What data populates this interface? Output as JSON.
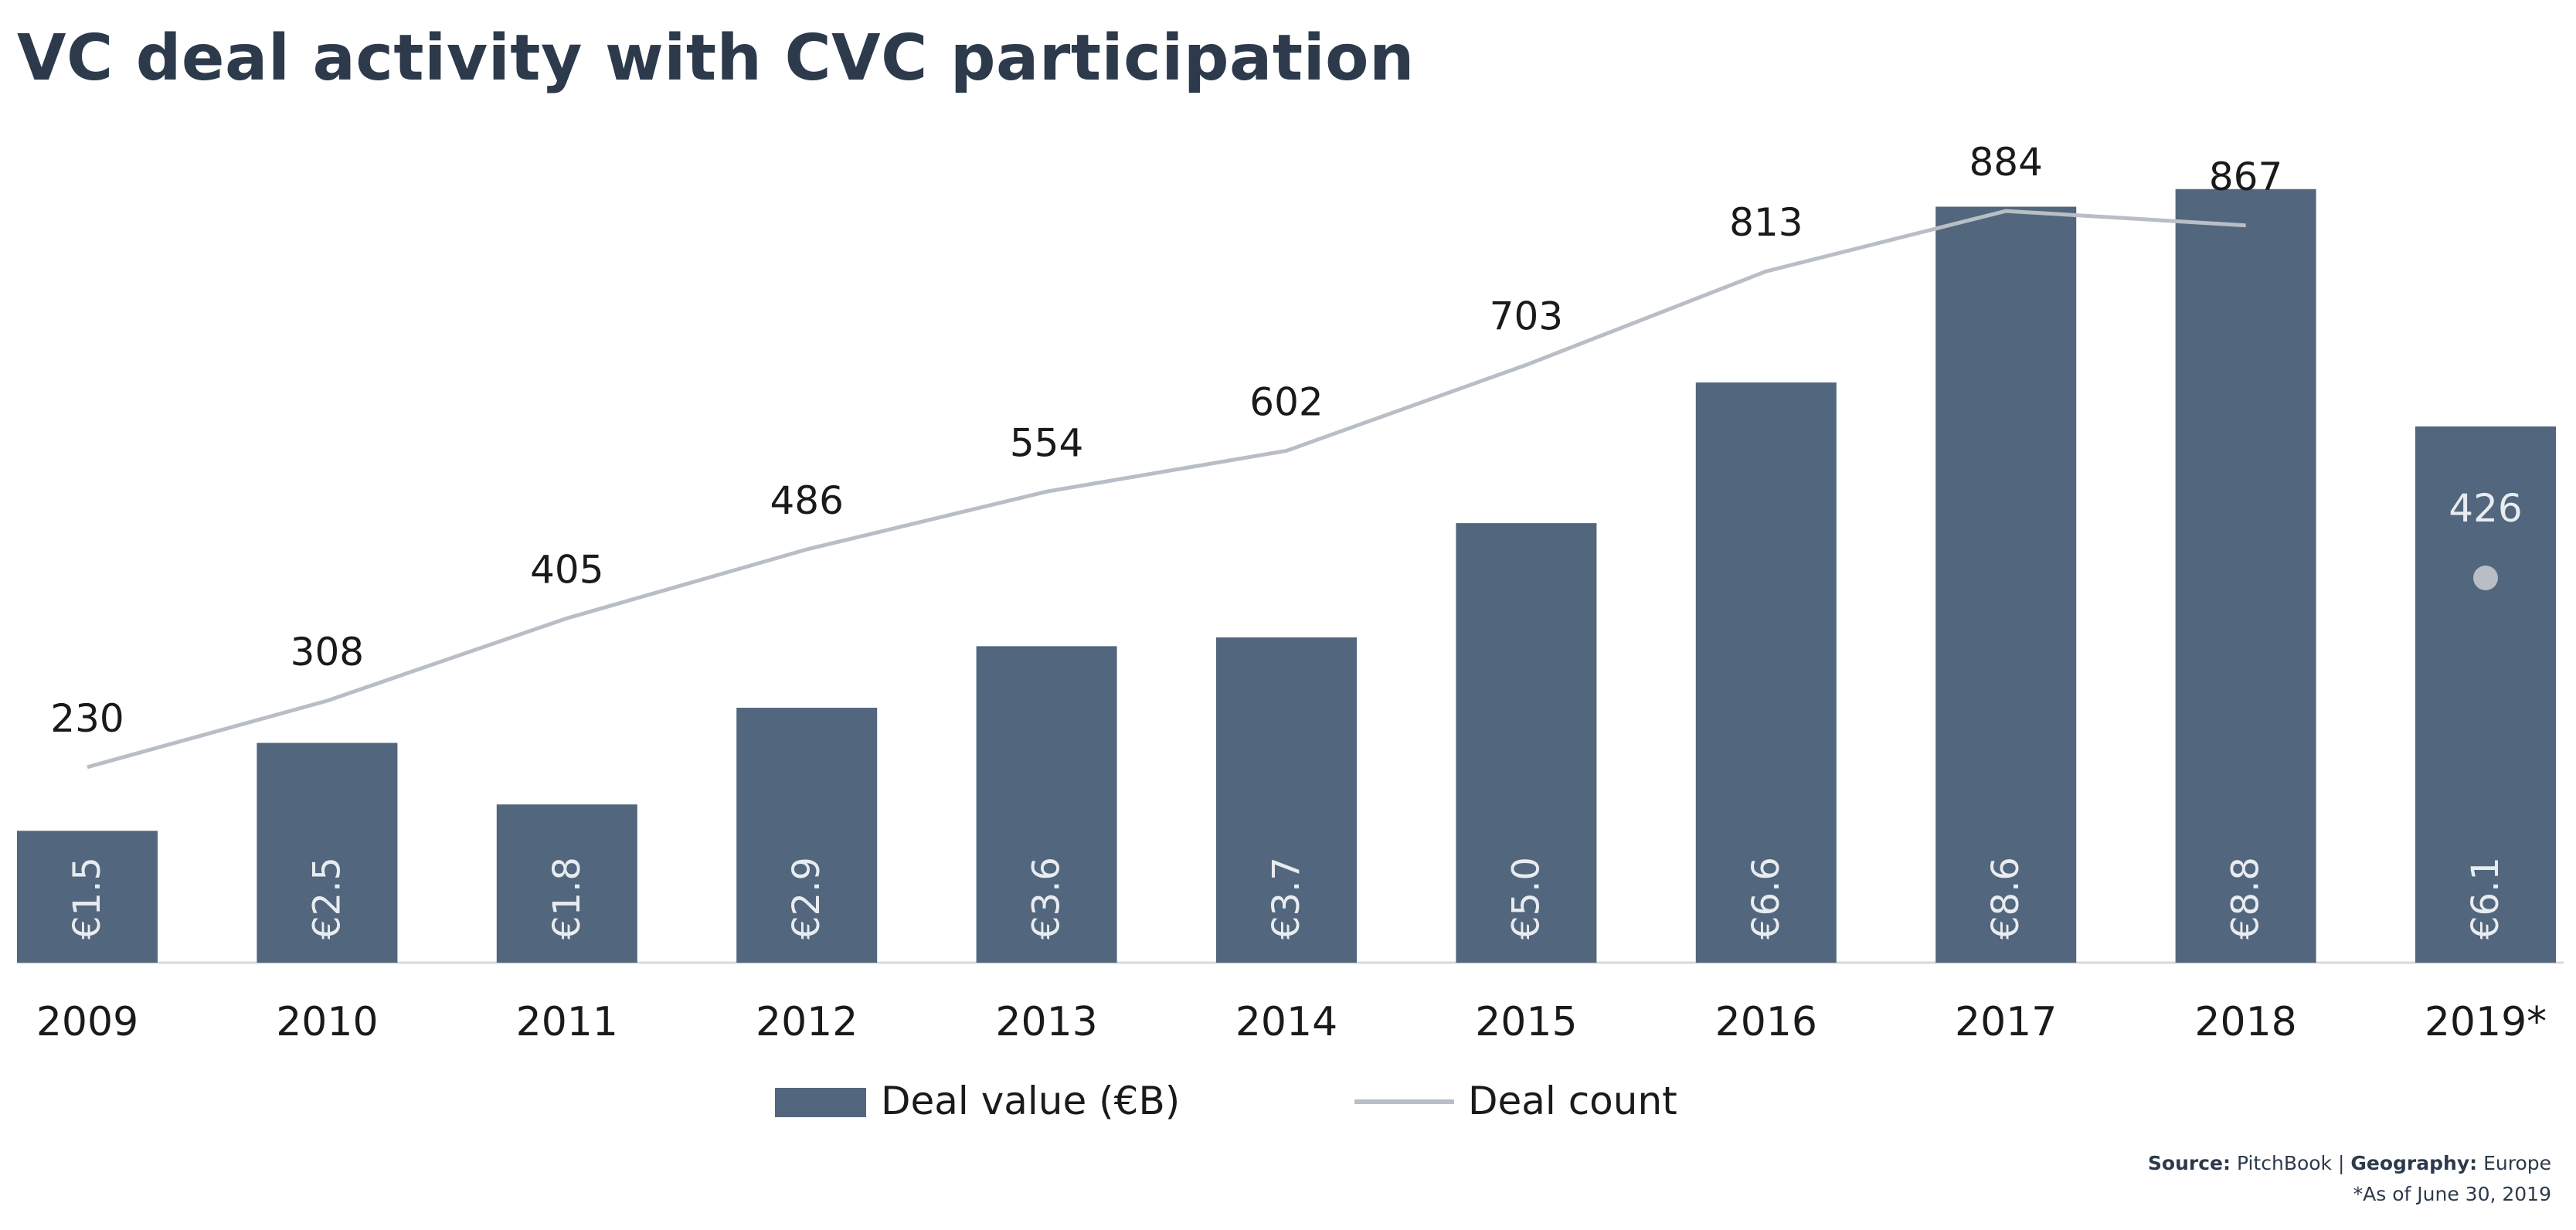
{
  "chart_data": {
    "type": "bar",
    "title": "VC deal activity with CVC participation",
    "categories": [
      "2009",
      "2010",
      "2011",
      "2012",
      "2013",
      "2014",
      "2015",
      "2016",
      "2017",
      "2018",
      "2019*"
    ],
    "series": [
      {
        "name": "Deal value (€B)",
        "type": "bar",
        "values": [
          1.5,
          2.5,
          1.8,
          2.9,
          3.6,
          3.7,
          5.0,
          6.6,
          8.6,
          8.8,
          6.1
        ],
        "labels": [
          "€1.5",
          "€2.5",
          "€1.8",
          "€2.9",
          "€3.6",
          "€3.7",
          "€5.0",
          "€6.6",
          "€8.6",
          "€8.8",
          "€6.1"
        ],
        "axis": "left",
        "ylim": [
          0,
          9
        ]
      },
      {
        "name": "Deal count",
        "type": "line",
        "values": [
          230,
          308,
          405,
          486,
          554,
          602,
          703,
          813,
          884,
          867,
          426
        ],
        "labels": [
          "230",
          "308",
          "405",
          "486",
          "554",
          "602",
          "703",
          "813",
          "884",
          "867",
          "426"
        ],
        "axis": "right",
        "ylim": [
          0,
          1000
        ],
        "note": "2019* shown as an isolated point"
      }
    ],
    "xlabel": "",
    "ylabel": "",
    "legend_position": "bottom-center",
    "grid": false
  },
  "colors": {
    "bar": "#52667d",
    "line": "#b9bec6",
    "title": "#2c3a4b",
    "label_dark": "#1a1a1a",
    "label_light": "#e8ecf0",
    "axis": "#d9d9d9"
  },
  "source": {
    "source_label": "Source:",
    "source_value": "PitchBook",
    "separator": "|",
    "geography_label": "Geography:",
    "geography_value": "Europe",
    "footnote": "*As of June 30, 2019"
  }
}
